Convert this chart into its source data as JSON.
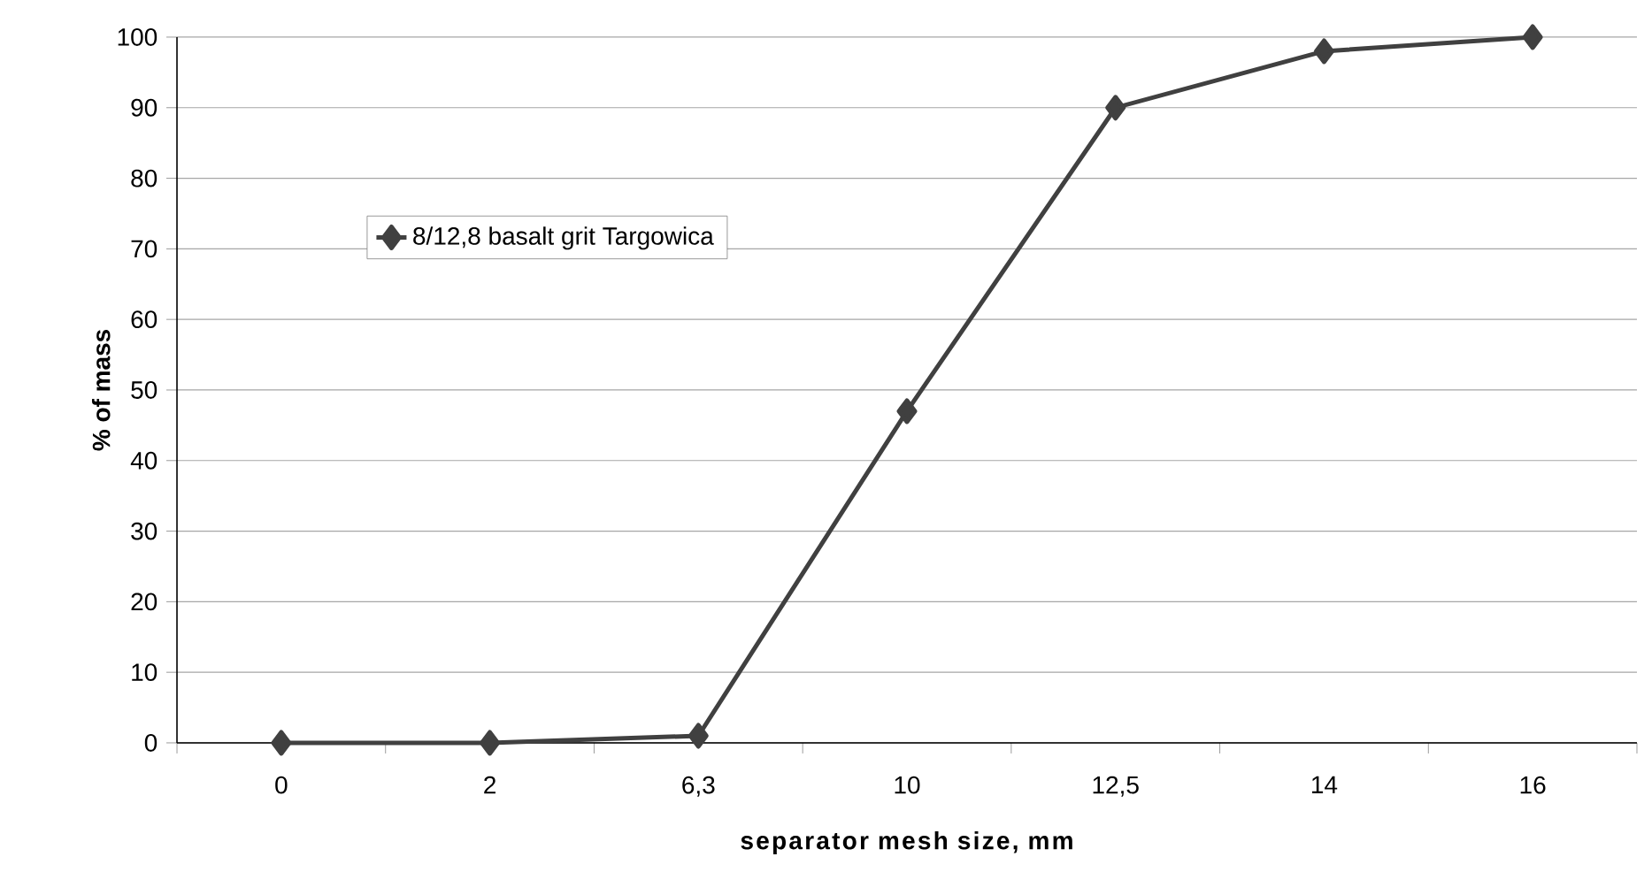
{
  "chart_data": {
    "type": "line",
    "xlabel": "separator mesh size, mm",
    "ylabel": "% of mass",
    "categories": [
      "0",
      "2",
      "6,3",
      "10",
      "12,5",
      "14",
      "16"
    ],
    "series": [
      {
        "name": "8/12,8 basalt grit Targowica",
        "color": "#404040",
        "values": [
          0,
          0,
          1,
          47,
          90,
          98,
          100
        ]
      }
    ],
    "ylim": [
      0,
      100
    ],
    "yticks": [
      0,
      10,
      20,
      30,
      40,
      50,
      60,
      70,
      80,
      90,
      100
    ],
    "grid": "y",
    "legend": "top left",
    "marker": "diamond",
    "line_style": "solid"
  }
}
